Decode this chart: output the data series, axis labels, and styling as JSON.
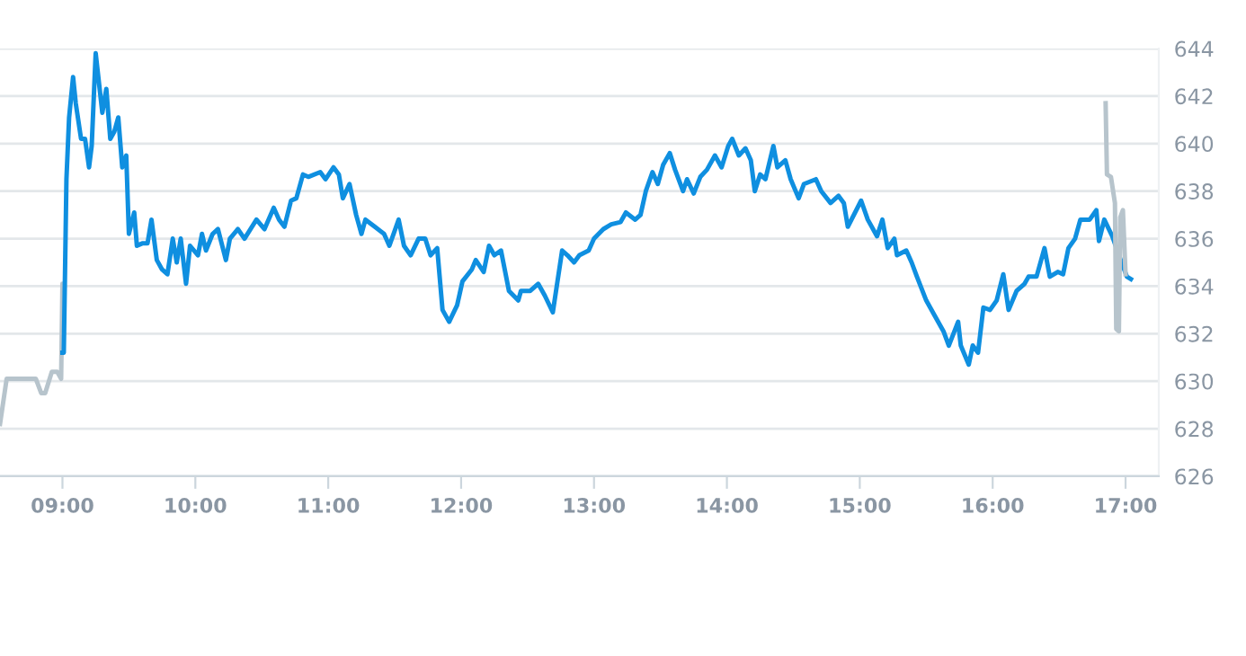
{
  "chart_data": {
    "type": "line",
    "xlim": [
      8.53,
      17.25
    ],
    "xticks": [
      {
        "value": 9,
        "label": "09:00"
      },
      {
        "value": 10,
        "label": "10:00"
      },
      {
        "value": 11,
        "label": "11:00"
      },
      {
        "value": 12,
        "label": "12:00"
      },
      {
        "value": 13,
        "label": "13:00"
      },
      {
        "value": 14,
        "label": "14:00"
      },
      {
        "value": 15,
        "label": "15:00"
      },
      {
        "value": 16,
        "label": "16:00"
      },
      {
        "value": 17,
        "label": "17:00"
      }
    ],
    "ylim": [
      626,
      644
    ],
    "yticks": [
      626,
      628,
      630,
      632,
      634,
      636,
      638,
      640,
      642,
      644
    ],
    "grid": "y",
    "marker": "none",
    "line_style": "solid",
    "series": [
      {
        "color": "#b7c4cc",
        "x": [
          8.53,
          8.58,
          8.8,
          8.84,
          8.87,
          8.92,
          8.96,
          8.99,
          9.0,
          9.0
        ],
        "values": [
          628.2,
          630.1,
          630.1,
          629.5,
          629.5,
          630.4,
          630.4,
          630.1,
          634.1,
          631.2
        ]
      },
      {
        "color": "#0f8fe0",
        "x": [
          9.0,
          9.01,
          9.03,
          9.05,
          9.08,
          9.1,
          9.14,
          9.17,
          9.2,
          9.22,
          9.25,
          9.27,
          9.3,
          9.33,
          9.36,
          9.39,
          9.42,
          9.45,
          9.48,
          9.5,
          9.54,
          9.56,
          9.6,
          9.64,
          9.67,
          9.71,
          9.75,
          9.79,
          9.83,
          9.86,
          9.89,
          9.93,
          9.96,
          10.02,
          10.05,
          10.08,
          10.13,
          10.17,
          10.23,
          10.26,
          10.32,
          10.37,
          10.46,
          10.52,
          10.59,
          10.63,
          10.67,
          10.72,
          10.76,
          10.81,
          10.85,
          10.94,
          10.98,
          11.04,
          11.08,
          11.11,
          11.16,
          11.21,
          11.25,
          11.28,
          11.35,
          11.42,
          11.46,
          11.53,
          11.57,
          11.62,
          11.68,
          11.73,
          11.77,
          11.82,
          11.86,
          11.91,
          11.97,
          12.01,
          12.08,
          12.11,
          12.17,
          12.21,
          12.25,
          12.3,
          12.36,
          12.43,
          12.45,
          12.52,
          12.58,
          12.63,
          12.69,
          12.76,
          12.8,
          12.85,
          12.89,
          12.96,
          13.0,
          13.07,
          13.13,
          13.2,
          13.24,
          13.31,
          13.35,
          13.39,
          13.44,
          13.48,
          13.52,
          13.57,
          13.61,
          13.67,
          13.7,
          13.75,
          13.8,
          13.85,
          13.91,
          13.96,
          14.01,
          14.04,
          14.09,
          14.14,
          14.18,
          14.21,
          14.25,
          14.29,
          14.35,
          14.38,
          14.44,
          14.48,
          14.54,
          14.58,
          14.67,
          14.71,
          14.78,
          14.84,
          14.88,
          14.91,
          15.01,
          15.06,
          15.13,
          15.17,
          15.21,
          15.26,
          15.28,
          15.35,
          15.39,
          15.43,
          15.5,
          15.56,
          15.63,
          15.67,
          15.74,
          15.76,
          15.82,
          15.85,
          15.89,
          15.93,
          15.98,
          16.03,
          16.08,
          16.12,
          16.18,
          16.24,
          16.27,
          16.33,
          16.39,
          16.43,
          16.49,
          16.53,
          16.57,
          16.62,
          16.66,
          16.73,
          16.78,
          16.8,
          16.84,
          16.9,
          16.97,
          17.01,
          17.04
        ],
        "values": [
          631.2,
          631.2,
          638.5,
          641.1,
          642.8,
          641.7,
          640.2,
          640.2,
          639.0,
          639.9,
          643.8,
          642.8,
          641.3,
          642.3,
          640.2,
          640.5,
          641.1,
          639.0,
          639.5,
          636.2,
          637.1,
          635.7,
          635.8,
          635.8,
          636.8,
          635.1,
          634.7,
          634.5,
          636.0,
          635.0,
          636.0,
          634.1,
          635.7,
          635.3,
          636.2,
          635.5,
          636.2,
          636.4,
          635.1,
          636.0,
          636.4,
          636.0,
          636.8,
          636.4,
          637.3,
          636.8,
          636.5,
          637.6,
          637.7,
          638.7,
          638.6,
          638.8,
          638.5,
          639.0,
          638.7,
          637.7,
          638.3,
          637.0,
          636.2,
          636.8,
          636.5,
          636.2,
          635.7,
          636.8,
          635.7,
          635.3,
          636.0,
          636.0,
          635.3,
          635.6,
          633.0,
          632.5,
          633.2,
          634.2,
          634.7,
          635.1,
          634.6,
          635.7,
          635.3,
          635.5,
          633.8,
          633.4,
          633.8,
          633.8,
          634.1,
          633.6,
          632.9,
          635.5,
          635.3,
          635.0,
          635.3,
          635.5,
          636.0,
          636.4,
          636.6,
          636.7,
          637.1,
          636.8,
          637.0,
          638.0,
          638.8,
          638.3,
          639.1,
          639.6,
          638.9,
          638.0,
          638.5,
          637.9,
          638.6,
          638.9,
          639.5,
          639.0,
          639.9,
          640.2,
          639.5,
          639.8,
          639.3,
          638.0,
          638.7,
          638.5,
          639.9,
          639.0,
          639.3,
          638.5,
          637.7,
          638.3,
          638.5,
          638.0,
          637.5,
          637.8,
          637.5,
          636.5,
          637.6,
          636.8,
          636.1,
          636.8,
          635.6,
          636.0,
          635.3,
          635.5,
          635.0,
          634.4,
          633.4,
          632.8,
          632.1,
          631.5,
          632.5,
          631.5,
          630.7,
          631.5,
          631.2,
          633.1,
          633.0,
          633.4,
          634.5,
          633.0,
          633.8,
          634.1,
          634.4,
          634.4,
          635.6,
          634.4,
          634.6,
          634.5,
          635.6,
          636.0,
          636.8,
          636.8,
          637.2,
          635.9,
          636.8,
          636.1,
          635.0,
          634.4,
          634.3
        ]
      },
      {
        "color": "#b7c4cc",
        "x": [
          16.85,
          16.86,
          16.89,
          16.92,
          16.93,
          16.95,
          16.96,
          16.98,
          17.0
        ],
        "values": [
          641.7,
          638.7,
          638.6,
          637.5,
          632.2,
          632.1,
          636.9,
          637.2,
          634.5
        ]
      }
    ]
  }
}
